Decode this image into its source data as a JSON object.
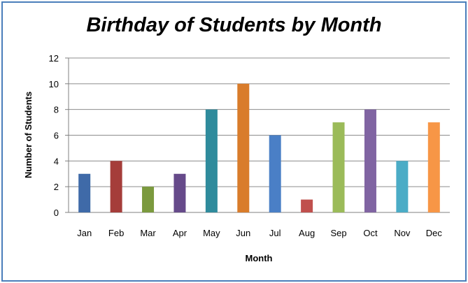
{
  "chart_data": {
    "type": "bar",
    "title": "Birthday of Students by Month",
    "xlabel": "Month",
    "ylabel": "Number of Students",
    "categories": [
      "Jan",
      "Feb",
      "Mar",
      "Apr",
      "May",
      "Jun",
      "Jul",
      "Aug",
      "Sep",
      "Oct",
      "Nov",
      "Dec"
    ],
    "values": [
      3,
      4,
      2,
      3,
      8,
      10,
      6,
      1,
      7,
      8,
      4,
      7
    ],
    "colors": [
      "#3f6aa8",
      "#a53d3a",
      "#7b9a3e",
      "#664a8a",
      "#2f8b9c",
      "#d97c2b",
      "#4a7fc6",
      "#c0504d",
      "#9bbb59",
      "#8064a2",
      "#4bacc6",
      "#f79646"
    ],
    "ylim": [
      0,
      12
    ],
    "yticks": [
      0,
      2,
      4,
      6,
      8,
      10,
      12
    ],
    "grid": true
  }
}
